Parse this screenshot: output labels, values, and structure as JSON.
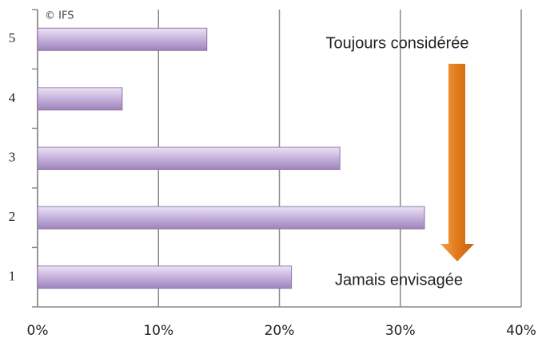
{
  "chart_data": {
    "type": "bar",
    "orientation": "horizontal",
    "categories": [
      "1",
      "2",
      "3",
      "4",
      "5"
    ],
    "values": [
      21,
      32,
      25,
      7,
      14
    ],
    "color": "#b9a3d3",
    "xlim": [
      0,
      40
    ],
    "xticks": [
      {
        "value": 0,
        "label": "0%"
      },
      {
        "value": 10,
        "label": "10%"
      },
      {
        "value": 20,
        "label": "20%"
      },
      {
        "value": 30,
        "label": "30%"
      },
      {
        "value": 40,
        "label": "40%"
      }
    ],
    "grid": true,
    "annotations": [
      "© IFS",
      "Toujours considérée",
      "Jamais envisagée"
    ]
  }
}
